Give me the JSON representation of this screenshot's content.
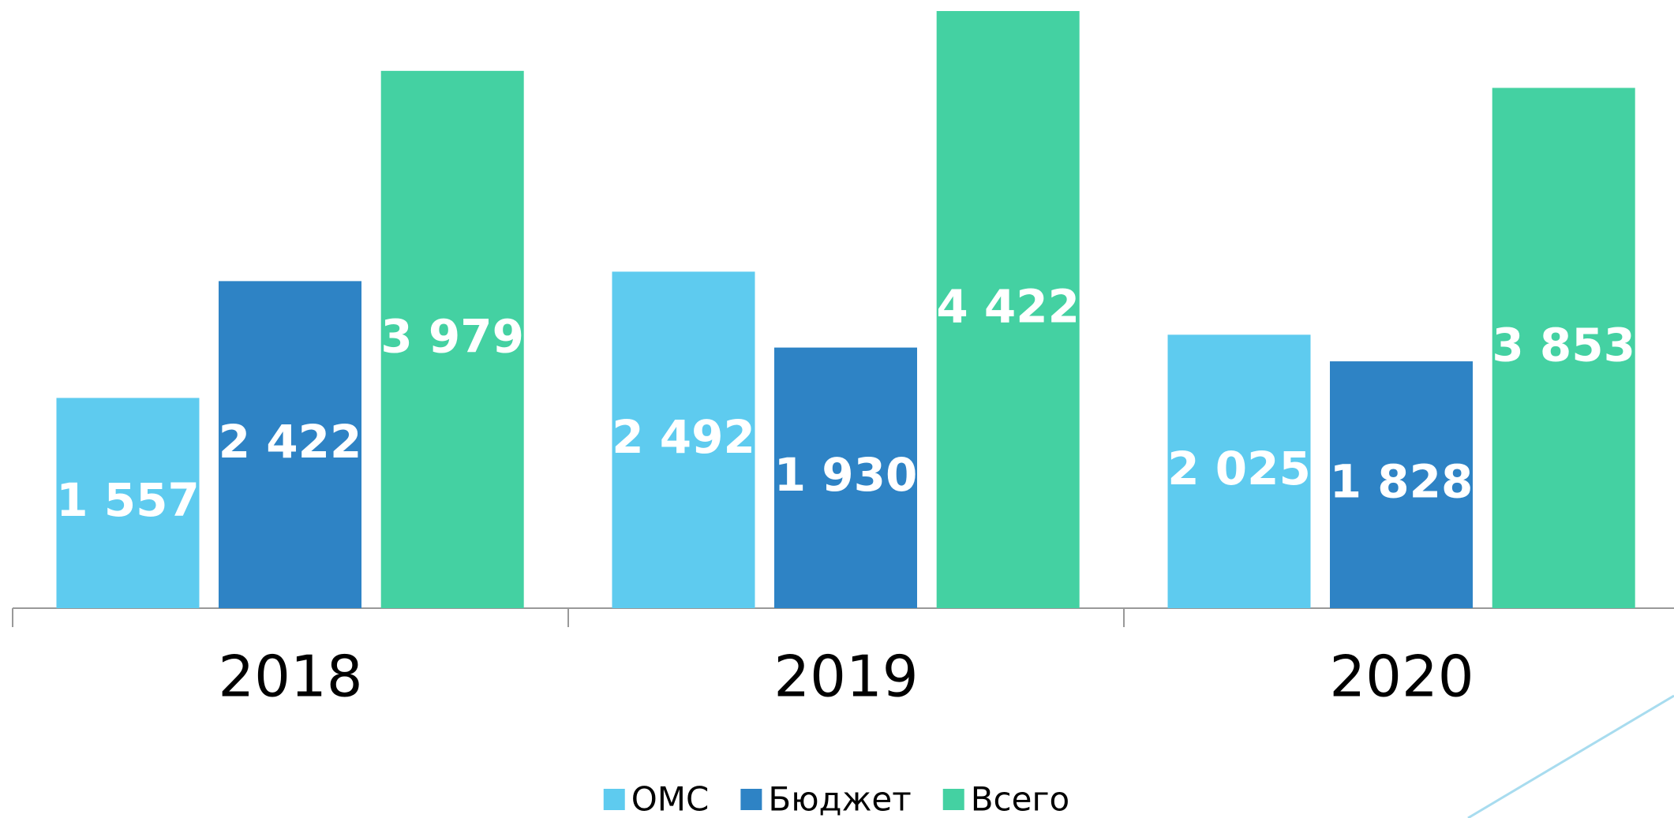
{
  "chart_data": {
    "type": "bar",
    "categories": [
      "2018",
      "2019",
      "2020"
    ],
    "series": [
      {
        "name": "ОМС",
        "color": "#5ecbef",
        "values": [
          1557,
          2492,
          2025
        ],
        "value_labels": [
          "1 557",
          "2 492",
          "2 025"
        ]
      },
      {
        "name": "Бюджет",
        "color": "#2e83c5",
        "values": [
          2422,
          1930,
          1828
        ],
        "value_labels": [
          "2 422",
          "1 930",
          "1 828"
        ]
      },
      {
        "name": "Всего",
        "color": "#44d1a2",
        "values": [
          3979,
          4422,
          3853
        ],
        "value_labels": [
          "3 979",
          "4 422",
          "3 853"
        ]
      }
    ],
    "legend": "bottom"
  }
}
